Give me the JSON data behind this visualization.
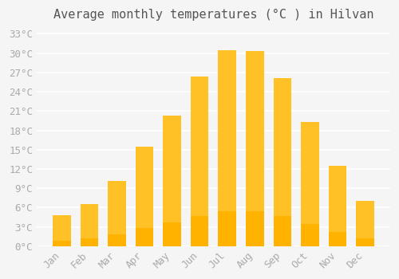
{
  "title": "Average monthly temperatures (°C ) in Hilvan",
  "months": [
    "Jan",
    "Feb",
    "Mar",
    "Apr",
    "May",
    "Jun",
    "Jul",
    "Aug",
    "Sep",
    "Oct",
    "Nov",
    "Dec"
  ],
  "values": [
    4.8,
    6.5,
    10.2,
    15.5,
    20.3,
    26.3,
    30.5,
    30.3,
    26.1,
    19.3,
    12.5,
    7.0
  ],
  "bar_color_top": "#FFC125",
  "bar_color_bottom": "#FFB300",
  "bar_edge_color": "none",
  "ylim": [
    0,
    34
  ],
  "yticks": [
    0,
    3,
    6,
    9,
    12,
    15,
    18,
    21,
    24,
    27,
    30,
    33
  ],
  "ytick_labels": [
    "0°C",
    "3°C",
    "6°C",
    "9°C",
    "12°C",
    "15°C",
    "18°C",
    "21°C",
    "24°C",
    "27°C",
    "30°C",
    "33°C"
  ],
  "background_color": "#F5F5F5",
  "grid_color": "#FFFFFF",
  "tick_color": "#AAAAAA",
  "title_fontsize": 11,
  "tick_fontsize": 9,
  "font_family": "monospace"
}
